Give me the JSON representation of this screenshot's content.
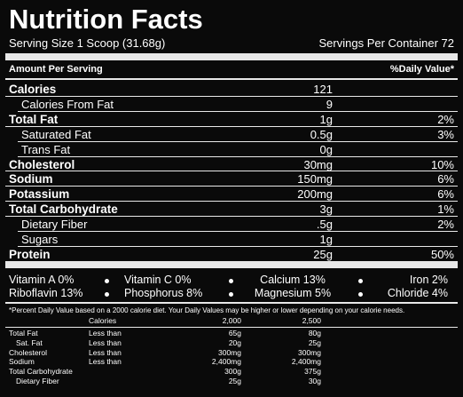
{
  "header": {
    "title": "Nutrition Facts",
    "serving_size": "Serving Size 1 Scoop (31.68g)",
    "servings_per_container": "Servings Per Container 72"
  },
  "amount_header": {
    "left": "Amount Per Serving",
    "right": "%Daily Value*"
  },
  "nutrients": [
    {
      "name": "Calories",
      "amount": 121
    },
    {
      "name": "Calories From Fat",
      "amount": 9
    },
    {
      "name": "Total Fat",
      "amount": "1g",
      "daily_value": "2%"
    },
    {
      "name": "Saturated Fat",
      "amount": "0.5g",
      "daily_value": "3%"
    },
    {
      "name": "Trans Fat",
      "amount": "0g"
    },
    {
      "name": "Cholesterol",
      "amount": "30mg",
      "daily_value": "10%"
    },
    {
      "name": "Sodium",
      "amount": "150mg",
      "daily_value": "6%"
    },
    {
      "name": "Potassium",
      "amount": "200mg",
      "daily_value": "6%"
    },
    {
      "name": "Total Carbohydrate",
      "amount": "3g",
      "daily_value": "1%"
    },
    {
      "name": "Dietary Fiber",
      "amount": ".5g",
      "daily_value": "2%"
    },
    {
      "name": "Sugars",
      "amount": "1g"
    },
    {
      "name": "Protein",
      "amount": "25g",
      "daily_value": "50%"
    }
  ],
  "vitamins": [
    [
      "Vitamin A 0%",
      "Vitamin C 0%",
      "Calcium 13%",
      "Iron 2%"
    ],
    [
      "Riboflavin 13%",
      "Phosphorus 8%",
      "Magnesium 5%",
      "Chloride 4%"
    ]
  ],
  "footnote": "*Percent Daily Value based on a 2000 calorie diet. Your Daily Values may be higher or lower depending on your calorie needs.",
  "daily_values": {
    "header": {
      "label": "Calories",
      "columns": [
        "2,000",
        "2,500"
      ]
    },
    "rows": [
      {
        "name": "Total Fat",
        "limit": "Less than",
        "v2000": "65g",
        "v2500": "80g"
      },
      {
        "name": "Sat. Fat",
        "limit": "Less than",
        "v2000": "20g",
        "v2500": "25g"
      },
      {
        "name": "Cholesterol",
        "limit": "Less than",
        "v2000": "300mg",
        "v2500": "300mg"
      },
      {
        "name": "Sodium",
        "limit": "Less than",
        "v2000": "2,400mg",
        "v2500": "2,400mg"
      },
      {
        "name": "Total Carbohydrate",
        "v2000": "300g",
        "v2500": "375g"
      },
      {
        "name": "Dietary Fiber",
        "v2000": "25g",
        "v2500": "30g"
      }
    ]
  }
}
